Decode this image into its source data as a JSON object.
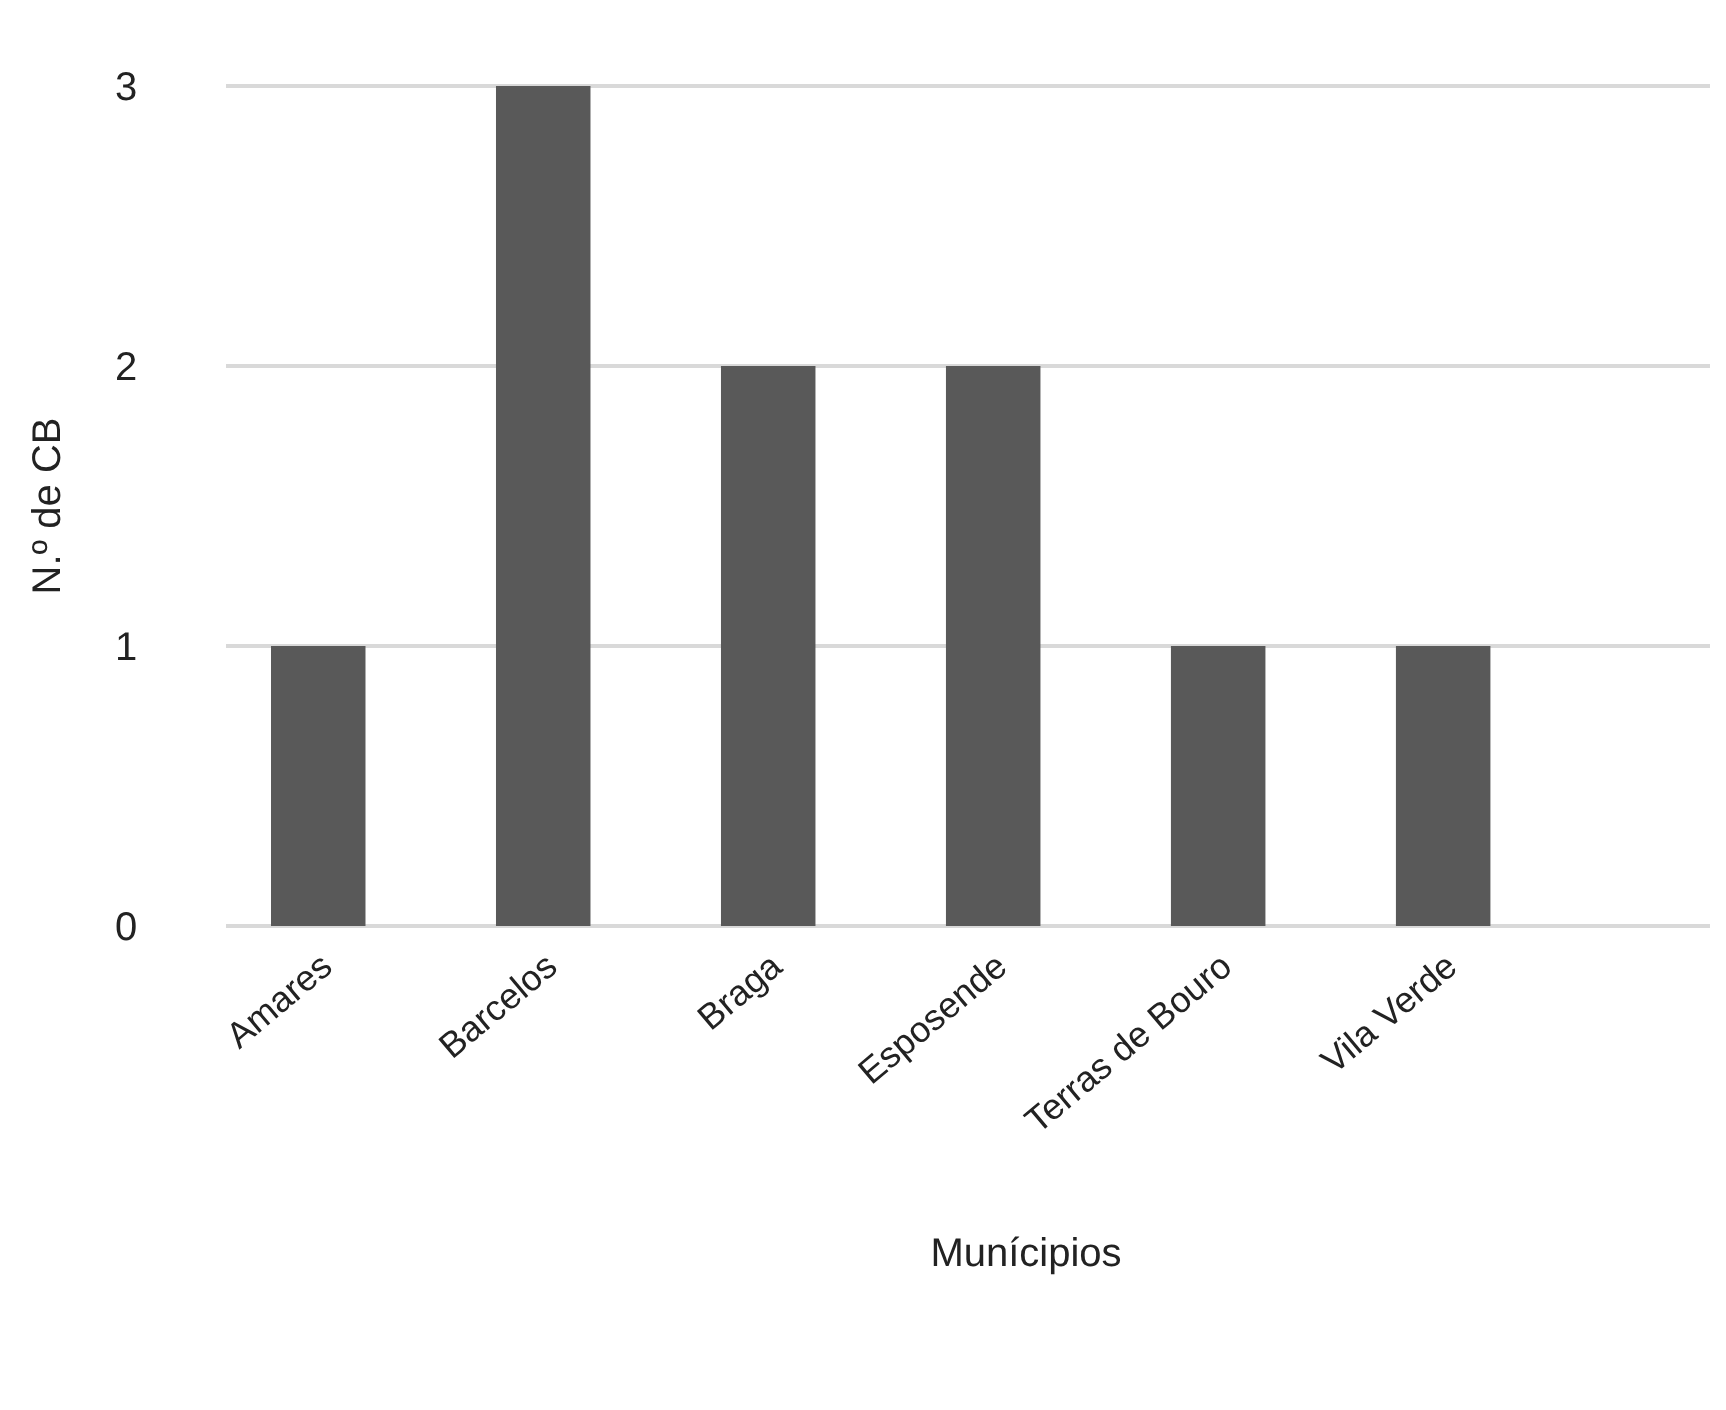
{
  "chart_data": {
    "type": "bar",
    "xlabel": "Munícipios",
    "ylabel": "N.º de CB",
    "categories": [
      "Amares",
      "Barcelos",
      "Braga",
      "Esposende",
      "Terras de Bouro",
      "Vila Verde"
    ],
    "values": [
      1,
      3,
      2,
      2,
      1,
      1
    ],
    "color": "#595959",
    "ylim": [
      0,
      3
    ],
    "yticks": [
      0,
      1,
      2,
      3
    ],
    "grid": "y"
  }
}
